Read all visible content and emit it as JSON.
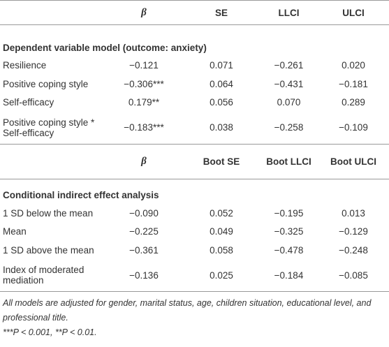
{
  "table": {
    "sections": [
      {
        "header": [
          "β",
          "SE",
          "LLCI",
          "ULCI"
        ],
        "title": "Dependent variable model (outcome: anxiety)",
        "rows": [
          [
            "Resilience",
            "−0.121",
            "0.071",
            "−0.261",
            "0.020"
          ],
          [
            "Positive coping style",
            "−0.306***",
            "0.064",
            "−0.431",
            "−0.181"
          ],
          [
            "Self-efficacy",
            "0.179**",
            "0.056",
            "0.070",
            "0.289"
          ],
          [
            "Positive coping style * Self-efficacy",
            "−0.183***",
            "0.038",
            "−0.258",
            "−0.109"
          ]
        ]
      },
      {
        "header": [
          "β",
          "Boot SE",
          "Boot LLCI",
          "Boot ULCI"
        ],
        "title": "Conditional indirect effect analysis",
        "rows": [
          [
            "1 SD below the mean",
            "−0.090",
            "0.052",
            "−0.195",
            "0.013"
          ],
          [
            "Mean",
            "−0.225",
            "0.049",
            "−0.325",
            "−0.129"
          ],
          [
            "1 SD above the mean",
            "−0.361",
            "0.058",
            "−0.478",
            "−0.248"
          ],
          [
            "Index of moderated mediation",
            "−0.136",
            "0.025",
            "−0.184",
            "−0.085"
          ]
        ]
      }
    ],
    "footnotes": [
      "All models are adjusted for gender, marital status, age, children situation, educational level, and professional title.",
      "***P < 0.001, **P < 0.01."
    ]
  }
}
